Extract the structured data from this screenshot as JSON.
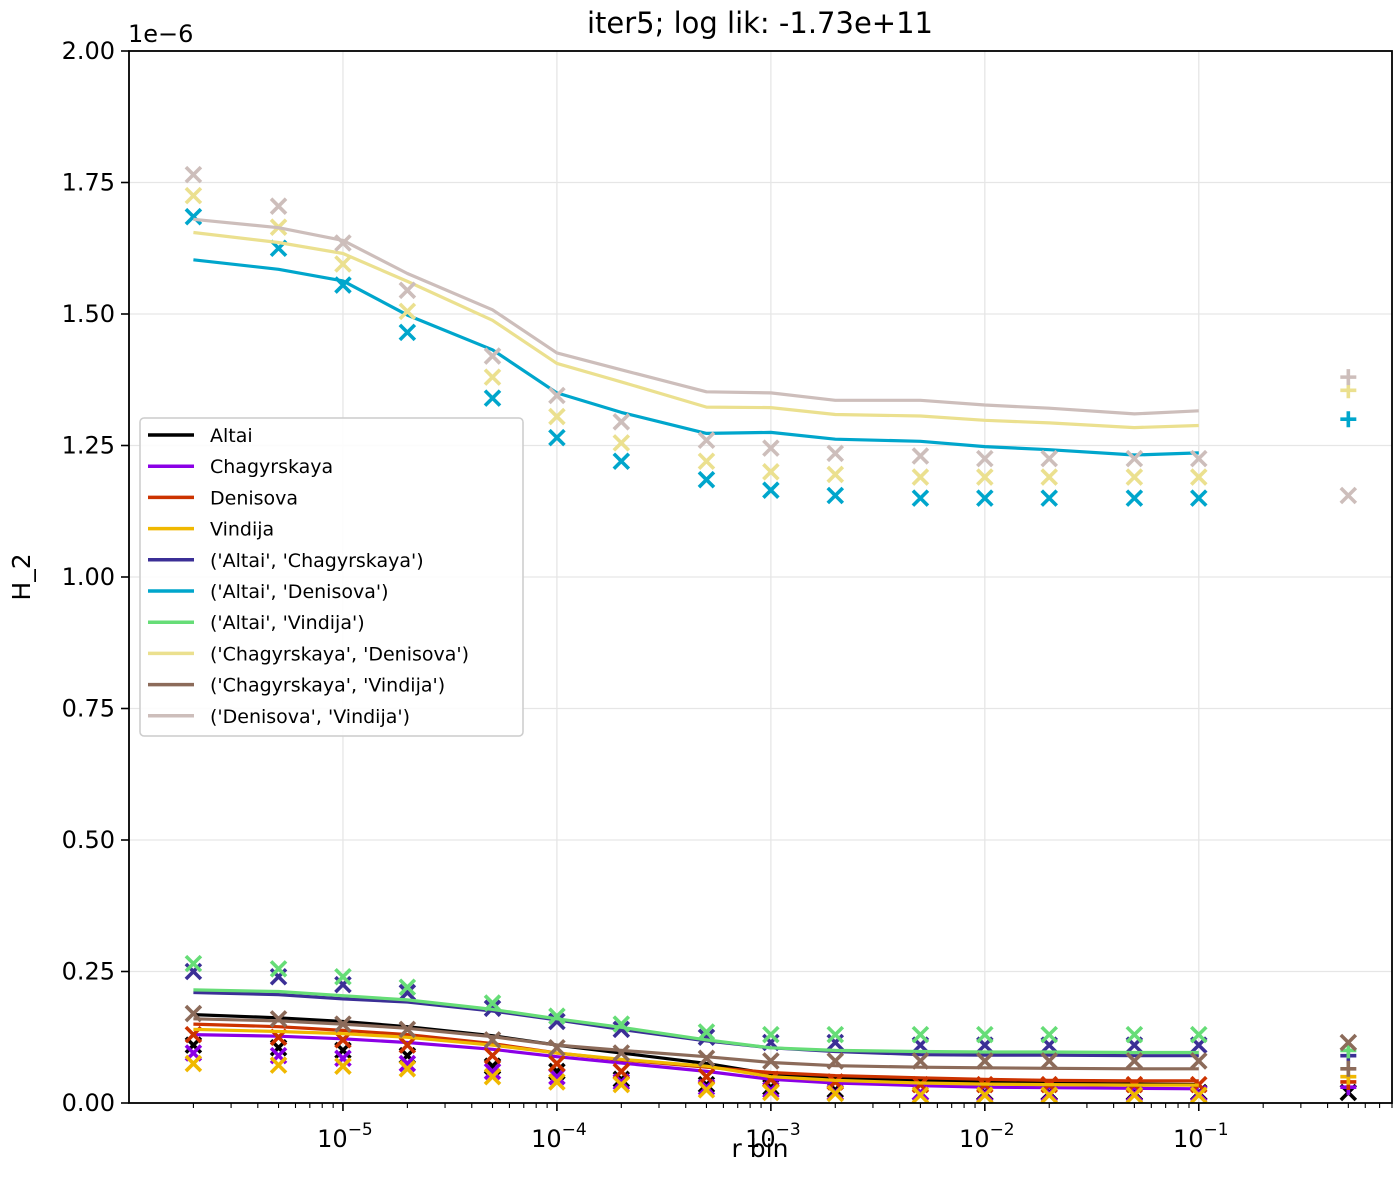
{
  "chart_data": {
    "type": "line",
    "title": "iter5; log lik: -1.73e+11",
    "xlabel": "r bin",
    "ylabel": "H_2",
    "y_offset_label": "1e−6",
    "x_scale": "log",
    "xlim": [
      1e-06,
      0.8
    ],
    "ylim": [
      0.0,
      2.0
    ],
    "y_ticks": [
      "0.00",
      "0.25",
      "0.50",
      "0.75",
      "1.00",
      "1.25",
      "1.50",
      "1.75",
      "2.00"
    ],
    "x_ticks": [
      {
        "base": "10",
        "exp": "−5",
        "value": 1e-05
      },
      {
        "base": "10",
        "exp": "−4",
        "value": 0.0001
      },
      {
        "base": "10",
        "exp": "−3",
        "value": 0.001
      },
      {
        "base": "10",
        "exp": "−2",
        "value": 0.01
      },
      {
        "base": "10",
        "exp": "−1",
        "value": 0.1
      }
    ],
    "grid": true,
    "legend_position": "center-left",
    "x": [
      2e-06,
      5e-06,
      1e-05,
      2e-05,
      5e-05,
      0.0001,
      0.0002,
      0.0005,
      0.001,
      0.002,
      0.005,
      0.01,
      0.02,
      0.05,
      0.1
    ],
    "extra_x": 0.5,
    "series": [
      {
        "name": "Altai",
        "color": "#000000",
        "model": [
          0.168,
          0.162,
          0.155,
          0.145,
          0.128,
          0.11,
          0.095,
          0.075,
          0.055,
          0.048,
          0.043,
          0.04,
          0.038,
          0.036,
          0.035
        ],
        "observed": [
          0.11,
          0.105,
          0.1,
          0.09,
          0.07,
          0.06,
          0.045,
          0.035,
          0.03,
          0.025,
          0.02,
          0.02,
          0.02,
          0.02,
          0.02
        ],
        "extra": 0.02,
        "extra_marker": "x"
      },
      {
        "name": "Chagyrskaya",
        "color": "#8b00e6",
        "model": [
          0.13,
          0.127,
          0.122,
          0.115,
          0.102,
          0.088,
          0.076,
          0.06,
          0.045,
          0.038,
          0.033,
          0.03,
          0.029,
          0.028,
          0.027
        ],
        "observed": [
          0.095,
          0.09,
          0.085,
          0.075,
          0.06,
          0.05,
          0.04,
          0.03,
          0.025,
          0.02,
          0.02,
          0.018,
          0.018,
          0.018,
          0.018
        ],
        "extra": 0.03,
        "extra_marker": "+"
      },
      {
        "name": "Denisova",
        "color": "#cc3300",
        "model": [
          0.15,
          0.145,
          0.138,
          0.13,
          0.113,
          0.095,
          0.082,
          0.068,
          0.058,
          0.052,
          0.048,
          0.045,
          0.043,
          0.042,
          0.042
        ],
        "observed": [
          0.13,
          0.125,
          0.12,
          0.11,
          0.09,
          0.075,
          0.06,
          0.05,
          0.045,
          0.04,
          0.035,
          0.035,
          0.035,
          0.035,
          0.035
        ],
        "extra": 0.04,
        "extra_marker": "+"
      },
      {
        "name": "Vindija",
        "color": "#f0b800",
        "model": [
          0.14,
          0.136,
          0.132,
          0.125,
          0.11,
          0.095,
          0.083,
          0.07,
          0.05,
          0.043,
          0.038,
          0.036,
          0.035,
          0.034,
          0.034
        ],
        "observed": [
          0.075,
          0.072,
          0.07,
          0.065,
          0.05,
          0.04,
          0.035,
          0.025,
          0.02,
          0.018,
          0.015,
          0.015,
          0.015,
          0.015,
          0.015
        ],
        "extra": 0.05,
        "extra_marker": "+"
      },
      {
        "name": "('Altai', 'Chagyrskaya')",
        "color": "#3b2f96",
        "model": [
          0.21,
          0.206,
          0.198,
          0.192,
          0.175,
          0.158,
          0.14,
          0.118,
          0.105,
          0.098,
          0.092,
          0.091,
          0.091,
          0.09,
          0.09
        ],
        "observed": [
          0.25,
          0.24,
          0.225,
          0.21,
          0.18,
          0.155,
          0.14,
          0.125,
          0.115,
          0.115,
          0.11,
          0.11,
          0.11,
          0.11,
          0.11
        ],
        "extra": 0.09,
        "extra_marker": "+"
      },
      {
        "name": "('Altai', 'Denisova')",
        "color": "#00a6cc",
        "model": [
          1.603,
          1.585,
          1.563,
          1.498,
          1.432,
          1.35,
          1.313,
          1.273,
          1.275,
          1.262,
          1.258,
          1.248,
          1.242,
          1.232,
          1.236
        ],
        "observed": [
          1.685,
          1.625,
          1.555,
          1.465,
          1.34,
          1.265,
          1.22,
          1.185,
          1.165,
          1.155,
          1.15,
          1.15,
          1.15,
          1.15,
          1.15
        ],
        "extra": 1.3,
        "extra_marker": "+"
      },
      {
        "name": "('Altai', 'Vindija')",
        "color": "#66dd77",
        "model": [
          0.215,
          0.212,
          0.204,
          0.196,
          0.178,
          0.16,
          0.144,
          0.12,
          0.105,
          0.1,
          0.098,
          0.097,
          0.097,
          0.096,
          0.096
        ],
        "observed": [
          0.265,
          0.255,
          0.24,
          0.22,
          0.19,
          0.165,
          0.15,
          0.135,
          0.13,
          0.13,
          0.13,
          0.13,
          0.13,
          0.13,
          0.13
        ],
        "extra": 0.1,
        "extra_marker": "+"
      },
      {
        "name": "('Chagyrskaya', 'Denisova')",
        "color": "#ebe08f",
        "model": [
          1.655,
          1.636,
          1.615,
          1.562,
          1.488,
          1.406,
          1.371,
          1.323,
          1.322,
          1.309,
          1.306,
          1.298,
          1.293,
          1.284,
          1.288
        ],
        "observed": [
          1.725,
          1.665,
          1.595,
          1.505,
          1.38,
          1.305,
          1.255,
          1.22,
          1.2,
          1.195,
          1.19,
          1.19,
          1.19,
          1.19,
          1.19
        ],
        "extra": 1.355,
        "extra_marker": "+"
      },
      {
        "name": "('Chagyrskaya', 'Vindija')",
        "color": "#8c6b5a",
        "model": [
          0.16,
          0.156,
          0.15,
          0.142,
          0.126,
          0.11,
          0.1,
          0.088,
          0.077,
          0.071,
          0.068,
          0.067,
          0.066,
          0.065,
          0.065
        ],
        "observed": [
          0.17,
          0.16,
          0.15,
          0.14,
          0.12,
          0.105,
          0.095,
          0.085,
          0.08,
          0.08,
          0.08,
          0.08,
          0.08,
          0.08,
          0.08
        ],
        "extra": 0.115,
        "extra_marker": "x",
        "extra2": 0.065,
        "extra2_marker": "+"
      },
      {
        "name": "('Denisova', 'Vindija')",
        "color": "#cdbebb",
        "model": [
          1.68,
          1.664,
          1.64,
          1.577,
          1.508,
          1.426,
          1.394,
          1.352,
          1.35,
          1.336,
          1.336,
          1.327,
          1.321,
          1.31,
          1.316
        ],
        "observed": [
          1.765,
          1.705,
          1.635,
          1.545,
          1.42,
          1.345,
          1.295,
          1.26,
          1.245,
          1.235,
          1.23,
          1.225,
          1.225,
          1.225,
          1.225
        ],
        "extra": 1.38,
        "extra_marker": "+",
        "extra2": 1.155,
        "extra2_marker": "x"
      }
    ]
  }
}
